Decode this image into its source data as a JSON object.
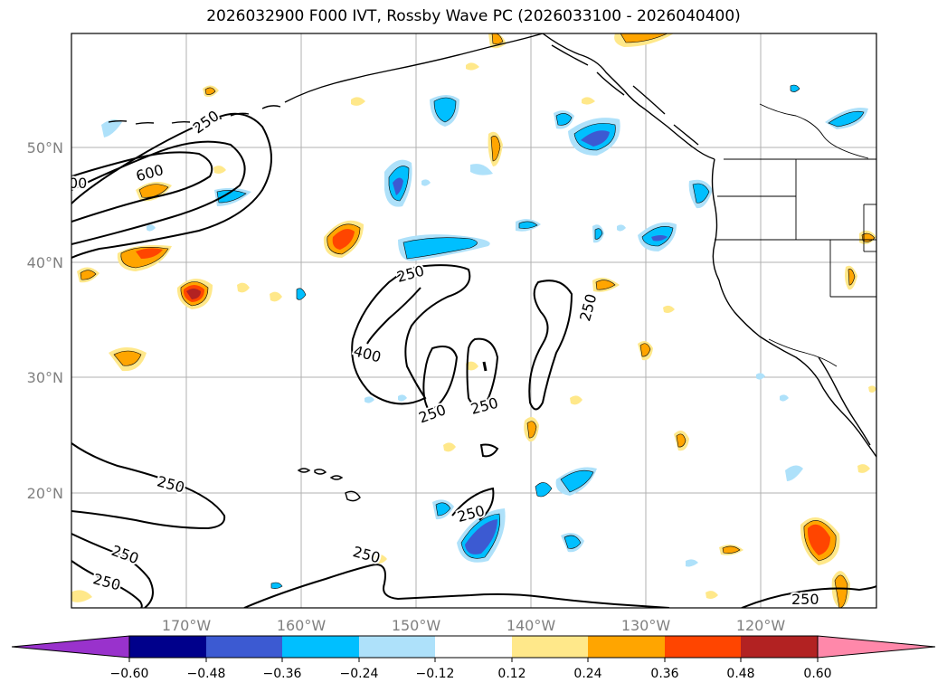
{
  "title": "2026032900 F000 IVT, Rossby Wave PC (2026033100 - 2026040400)",
  "map": {
    "lon_labels": [
      "170°W",
      "160°W",
      "150°W",
      "140°W",
      "130°W",
      "120°W"
    ],
    "lat_labels": [
      "50°N",
      "40°N",
      "30°N",
      "20°N"
    ],
    "contour_labels": [
      "250",
      "600",
      "00",
      "250",
      "400",
      "250",
      "250",
      "250",
      "250",
      "250",
      "250",
      "250",
      "250",
      "250"
    ],
    "contour_color": "#000000"
  },
  "colorbar": {
    "ticks": [
      "−0.60",
      "−0.48",
      "−0.36",
      "−0.24",
      "−0.12",
      "0.12",
      "0.24",
      "0.36",
      "0.48",
      "0.60"
    ],
    "colors": {
      "under": "#9932cc",
      "b1": "#00008b",
      "b2": "#3c5ad2",
      "b3": "#00bfff",
      "b4": "#aee1fa",
      "b5": "#ffffff",
      "b6": "#ffffff",
      "b7": "#ffe88a",
      "b8": "#ffa500",
      "b9": "#ff4500",
      "b10": "#b22222",
      "over": "#ff88aa"
    }
  }
}
